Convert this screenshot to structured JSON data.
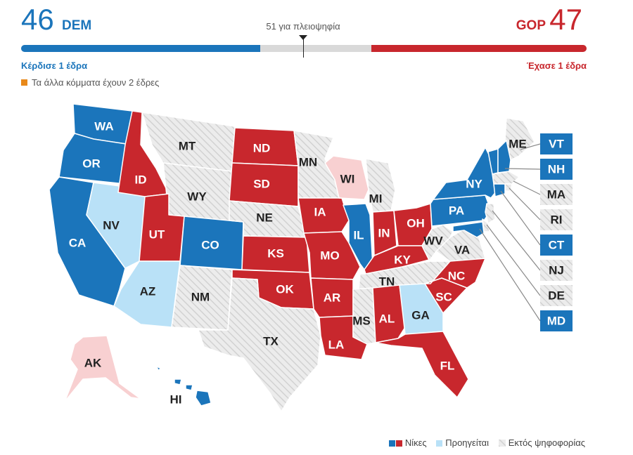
{
  "scoreboard": {
    "dem_seats": "46",
    "dem_label": "DEM",
    "gop_seats": "47",
    "gop_label": "GOP",
    "majority_text": "51 για πλειοψηφία",
    "dem_change": "Κέρδισε 1 έδρα",
    "gop_change": "Έχασε 1 έδρα",
    "others_text": "Τα άλλα κόμματα έχουν 2 έδρες",
    "dem_fraction": 0.46,
    "gop_fraction": 0.47,
    "majority_fraction": 0.51
  },
  "colors": {
    "dem_win": "#1b75bb",
    "dem_lead": "#b9e1f7",
    "gop_win": "#c8272d",
    "gop_lead": "#f8d0d1",
    "not_up": "#e6e6e6",
    "others": "#e8891a"
  },
  "states": {
    "WA": "dem_win",
    "OR": "dem_win",
    "CA": "dem_win",
    "NV": "dem_lead",
    "ID": "gop_win",
    "MT": "not_up",
    "WY": "not_up",
    "UT": "gop_win",
    "AZ": "dem_lead",
    "CO": "dem_win",
    "NM": "not_up",
    "ND": "gop_win",
    "SD": "gop_win",
    "NE": "not_up",
    "KS": "gop_win",
    "OK": "gop_win",
    "TX": "not_up",
    "MN": "not_up",
    "IA": "gop_win",
    "MO": "gop_win",
    "AR": "gop_win",
    "LA": "gop_win",
    "WI": "gop_lead",
    "IL": "dem_win",
    "MI": "not_up",
    "IN": "gop_win",
    "OH": "gop_win",
    "KY": "gop_win",
    "TN": "not_up",
    "MS": "not_up",
    "AL": "gop_win",
    "GA": "dem_lead",
    "FL": "gop_win",
    "SC": "gop_win",
    "NC": "gop_win",
    "VA": "not_up",
    "WV": "not_up",
    "PA": "dem_win",
    "NY": "dem_win",
    "ME": "not_up",
    "VT": "dem_win",
    "NH": "dem_win",
    "MA": "not_up",
    "RI": "not_up",
    "CT": "dem_win",
    "NJ": "not_up",
    "DE": "not_up",
    "MD": "dem_win",
    "AK": "gop_lead",
    "HI": "dem_win"
  },
  "legend": {
    "wins": "Νίκες",
    "leading": "Προηγείται",
    "not_up": "Εκτός ψηφοφορίας"
  }
}
